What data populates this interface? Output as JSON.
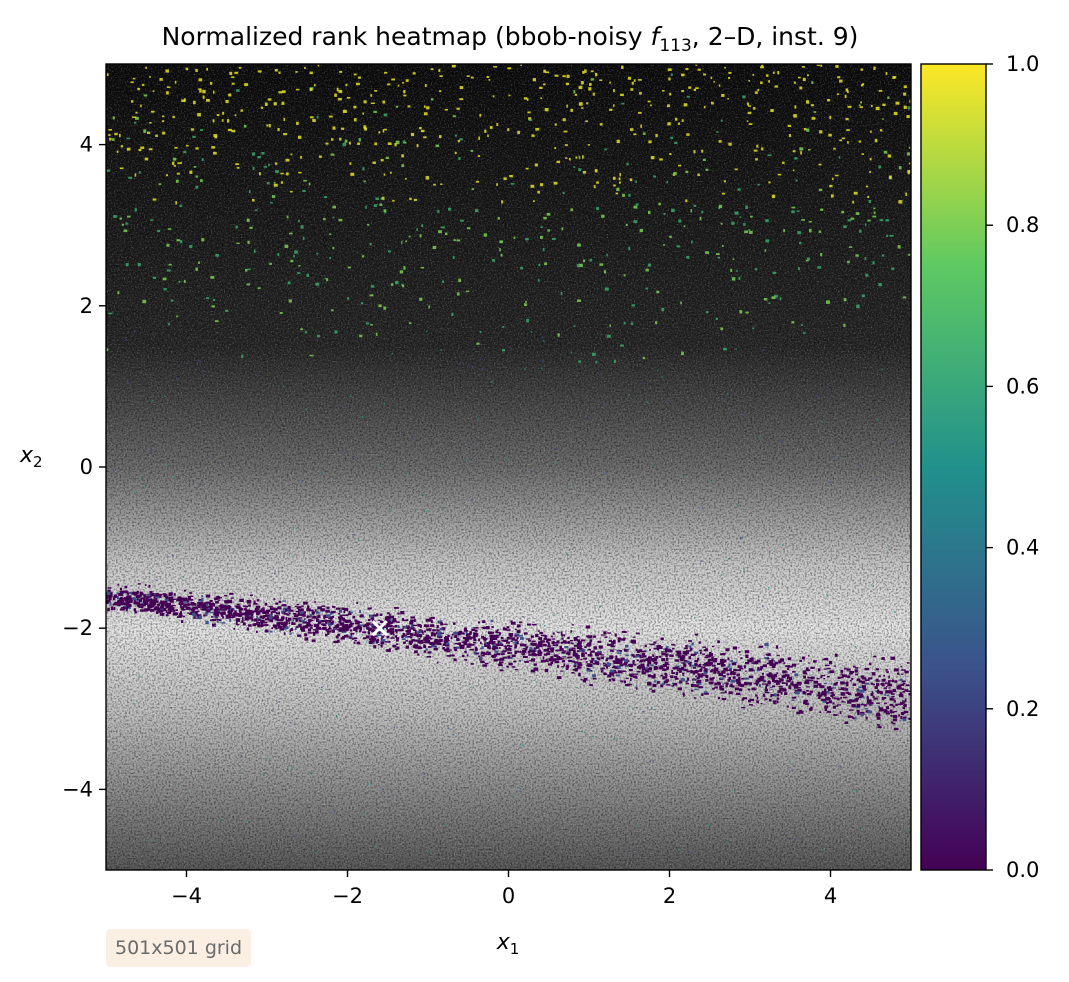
{
  "chart_data": {
    "type": "heatmap",
    "title": {
      "prefix": "Normalized rank heatmap (bbob-noisy ",
      "func_symbol": "f",
      "func_subscript": "113",
      "suffix": ", 2–D, inst. 9)"
    },
    "xlabel": {
      "base": "x",
      "sub": "1"
    },
    "ylabel": {
      "base": "x",
      "sub": "2"
    },
    "xlim": [
      -5,
      5
    ],
    "ylim": [
      -5,
      5
    ],
    "xticks": [
      -4,
      -2,
      0,
      2,
      4
    ],
    "yticks": [
      -4,
      -2,
      0,
      2,
      4
    ],
    "xtick_labels": [
      "−4",
      "−2",
      "0",
      "2",
      "4"
    ],
    "ytick_labels": [
      "−4",
      "−2",
      "0",
      "2",
      "4"
    ],
    "grid_size": [
      501,
      501
    ],
    "colormap": "viridis",
    "colormap_stops": [
      "#440154",
      "#3b528b",
      "#21918c",
      "#5ec962",
      "#fde725"
    ],
    "colorbar": {
      "range": [
        0.0,
        1.0
      ],
      "ticks": [
        0.0,
        0.2,
        0.4,
        0.6,
        0.8,
        1.0
      ],
      "tick_labels": [
        "0.0",
        "0.2",
        "0.4",
        "0.6",
        "0.8",
        "1.0"
      ]
    },
    "valley": {
      "description_of_data": "low-rank band (values near 0) along a line",
      "points": [
        [
          -5,
          -1.6
        ],
        [
          -1.6,
          -2.0
        ],
        [
          2,
          -2.45
        ],
        [
          5,
          -2.85
        ]
      ]
    },
    "optimum_marker": {
      "x": -1.6,
      "y": -2.0,
      "marker": "x",
      "color": "#ffffff"
    },
    "grid": false
  },
  "annotation": {
    "grid_label": "501x501 grid"
  }
}
